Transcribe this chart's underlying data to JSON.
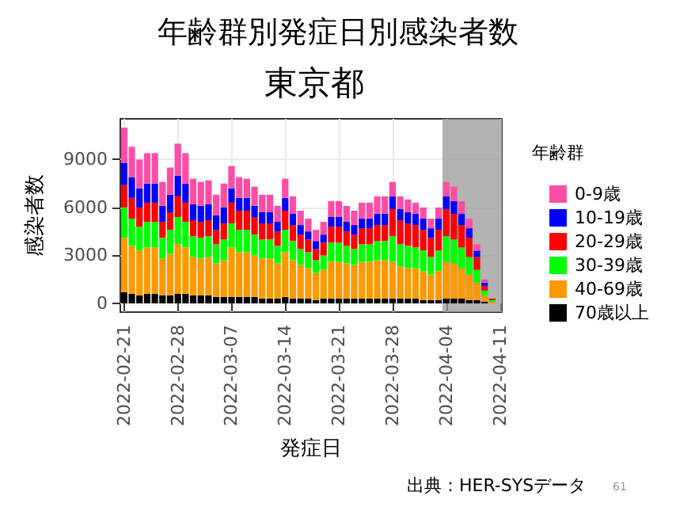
{
  "chart_data": {
    "type": "bar",
    "title": "年齢群別発症日別感染者数",
    "subtitle": "東京都",
    "xlabel": "発症日",
    "ylabel": "感染者数",
    "legend_title": "年齢群",
    "stacked": true,
    "grid": true,
    "legend": "right",
    "x": [
      "2022-02-21",
      "2022-02-22",
      "2022-02-23",
      "2022-02-24",
      "2022-02-25",
      "2022-02-26",
      "2022-02-27",
      "2022-02-28",
      "2022-03-01",
      "2022-03-02",
      "2022-03-03",
      "2022-03-04",
      "2022-03-05",
      "2022-03-06",
      "2022-03-07",
      "2022-03-08",
      "2022-03-09",
      "2022-03-10",
      "2022-03-11",
      "2022-03-12",
      "2022-03-13",
      "2022-03-14",
      "2022-03-15",
      "2022-03-16",
      "2022-03-17",
      "2022-03-18",
      "2022-03-19",
      "2022-03-20",
      "2022-03-21",
      "2022-03-22",
      "2022-03-23",
      "2022-03-24",
      "2022-03-25",
      "2022-03-26",
      "2022-03-27",
      "2022-03-28",
      "2022-03-29",
      "2022-03-30",
      "2022-03-31",
      "2022-04-01",
      "2022-04-02",
      "2022-04-03",
      "2022-04-04",
      "2022-04-05",
      "2022-04-06",
      "2022-04-07",
      "2022-04-08",
      "2022-04-09",
      "2022-04-10"
    ],
    "series": [
      {
        "name": "70歳以上",
        "color": "#000000",
        "values": [
          700,
          600,
          500,
          600,
          600,
          500,
          500,
          600,
          600,
          500,
          500,
          500,
          400,
          400,
          400,
          400,
          400,
          400,
          300,
          300,
          300,
          400,
          300,
          300,
          300,
          200,
          300,
          300,
          300,
          300,
          300,
          300,
          300,
          300,
          300,
          300,
          300,
          300,
          300,
          200,
          200,
          200,
          300,
          300,
          300,
          200,
          200,
          100,
          0
        ]
      },
      {
        "name": "40-69歳",
        "color": "#ff9900",
        "values": [
          3400,
          3000,
          2800,
          2900,
          2900,
          2300,
          2600,
          3100,
          2900,
          2400,
          2300,
          2400,
          2100,
          2300,
          3100,
          2800,
          2800,
          2600,
          2500,
          2500,
          2200,
          2800,
          2400,
          2100,
          1900,
          1700,
          1800,
          2300,
          2300,
          2200,
          2100,
          2300,
          2300,
          2400,
          2400,
          2300,
          2000,
          1900,
          1900,
          1800,
          1600,
          1800,
          2300,
          2200,
          1900,
          1600,
          1100,
          400,
          100
        ]
      },
      {
        "name": "30-39歳",
        "color": "#00ff00",
        "values": [
          1900,
          1700,
          1500,
          1600,
          1600,
          1300,
          1500,
          1700,
          1600,
          1300,
          1300,
          1300,
          1200,
          1300,
          1500,
          1400,
          1400,
          1300,
          1200,
          1200,
          1100,
          1400,
          1200,
          1000,
          1000,
          800,
          900,
          1200,
          1200,
          1100,
          1000,
          1100,
          1100,
          1200,
          1200,
          1600,
          1400,
          1400,
          1300,
          1300,
          1100,
          1300,
          1600,
          1500,
          1300,
          1100,
          800,
          300,
          100
        ]
      },
      {
        "name": "20-29歳",
        "color": "#ff0000",
        "values": [
          1400,
          1300,
          1200,
          1200,
          1200,
          1000,
          1100,
          1300,
          1200,
          1000,
          1000,
          1000,
          900,
          1000,
          1300,
          1200,
          1200,
          1100,
          1000,
          1000,
          900,
          1200,
          1000,
          900,
          800,
          700,
          800,
          1000,
          1000,
          900,
          900,
          1000,
          1000,
          1000,
          1000,
          1700,
          1500,
          1400,
          1400,
          1300,
          1200,
          1300,
          1700,
          1600,
          1400,
          1200,
          800,
          300,
          100
        ]
      },
      {
        "name": "10-19歳",
        "color": "#0000ff",
        "values": [
          1400,
          1300,
          1200,
          1200,
          1200,
          1000,
          1100,
          1300,
          1200,
          1000,
          1000,
          1000,
          900,
          1000,
          900,
          800,
          800,
          700,
          700,
          700,
          600,
          800,
          700,
          600,
          500,
          500,
          500,
          600,
          600,
          600,
          600,
          600,
          600,
          700,
          700,
          800,
          700,
          700,
          700,
          700,
          600,
          700,
          800,
          800,
          700,
          600,
          400,
          200,
          0
        ]
      },
      {
        "name": "0-9歳",
        "color": "#ff4da6",
        "values": [
          2200,
          1900,
          1800,
          1900,
          1900,
          1500,
          1700,
          2000,
          1900,
          1600,
          1500,
          1500,
          1300,
          1500,
          1400,
          1300,
          1200,
          1200,
          1100,
          1100,
          1000,
          1200,
          1100,
          900,
          800,
          700,
          800,
          1000,
          1000,
          1000,
          900,
          1000,
          1000,
          1100,
          1100,
          900,
          800,
          800,
          700,
          700,
          600,
          700,
          900,
          900,
          800,
          600,
          400,
          200,
          0
        ]
      }
    ],
    "xlim": [
      "2022-02-20T12:00",
      "2022-04-11T06:00"
    ],
    "xticks": [
      "2022-02-21",
      "2022-02-28",
      "2022-03-07",
      "2022-03-14",
      "2022-03-21",
      "2022-03-28",
      "2022-04-04",
      "2022-04-11"
    ],
    "ylim": [
      -550,
      11550
    ],
    "yticks": [
      0,
      3000,
      6000,
      9000
    ],
    "bands": [
      {
        "axis": "x",
        "from": "2022-04-03T12:00",
        "to": "2022-04-11T06:00",
        "color": "#999999"
      }
    ],
    "annotations": [
      "出典：HER-SYSデータ",
      "61"
    ]
  }
}
